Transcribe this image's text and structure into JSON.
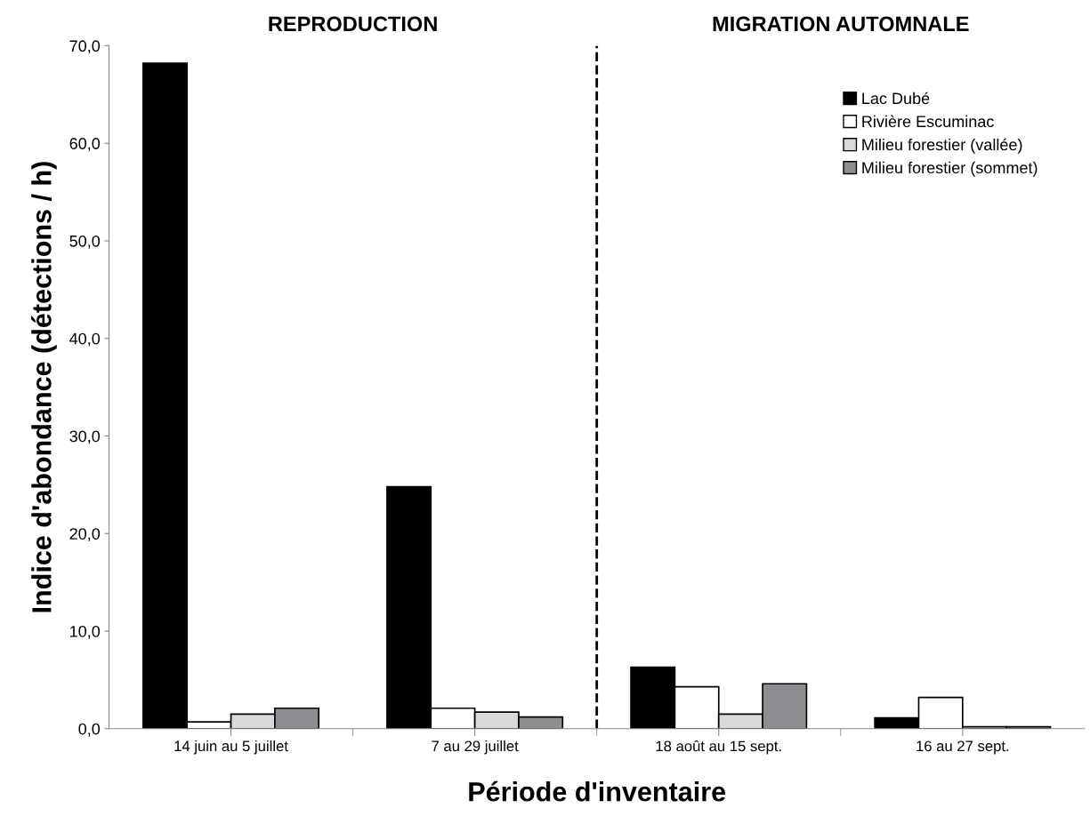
{
  "chart_data": {
    "type": "bar",
    "xlabel": "Période d'inventaire",
    "ylabel": "Indice d'abondance (détections / h)",
    "categories": [
      "14 juin au 5 juillet",
      "7 au 29 juillet",
      "18 août au 15 sept.",
      "16 au 27 sept."
    ],
    "series": [
      {
        "name": "Lac Dubé",
        "color": "#000000",
        "values": [
          68.2,
          24.8,
          6.3,
          1.1
        ]
      },
      {
        "name": "Rivière Escuminac",
        "color": "#ffffff",
        "values": [
          0.7,
          2.1,
          4.3,
          3.2
        ]
      },
      {
        "name": "Milieu forestier (vallée)",
        "color": "#d9d9d9",
        "values": [
          1.5,
          1.7,
          1.5,
          0.2
        ]
      },
      {
        "name": "Milieu forestier (sommet)",
        "color": "#8c8e91",
        "values": [
          2.1,
          1.2,
          4.6,
          0.2
        ]
      }
    ],
    "ylim": [
      0,
      70
    ],
    "yticks": [
      {
        "value": 0,
        "label": "0,0"
      },
      {
        "value": 10,
        "label": "10,0"
      },
      {
        "value": 20,
        "label": "20,0"
      },
      {
        "value": 30,
        "label": "30,0"
      },
      {
        "value": 40,
        "label": "40,0"
      },
      {
        "value": 50,
        "label": "50,0"
      },
      {
        "value": 60,
        "label": "60,0"
      },
      {
        "value": 70,
        "label": "70,0"
      }
    ],
    "annotations": [
      "REPRODUCTION",
      "MIGRATION AUTOMNALE"
    ],
    "grid": false,
    "legend": "top right"
  }
}
